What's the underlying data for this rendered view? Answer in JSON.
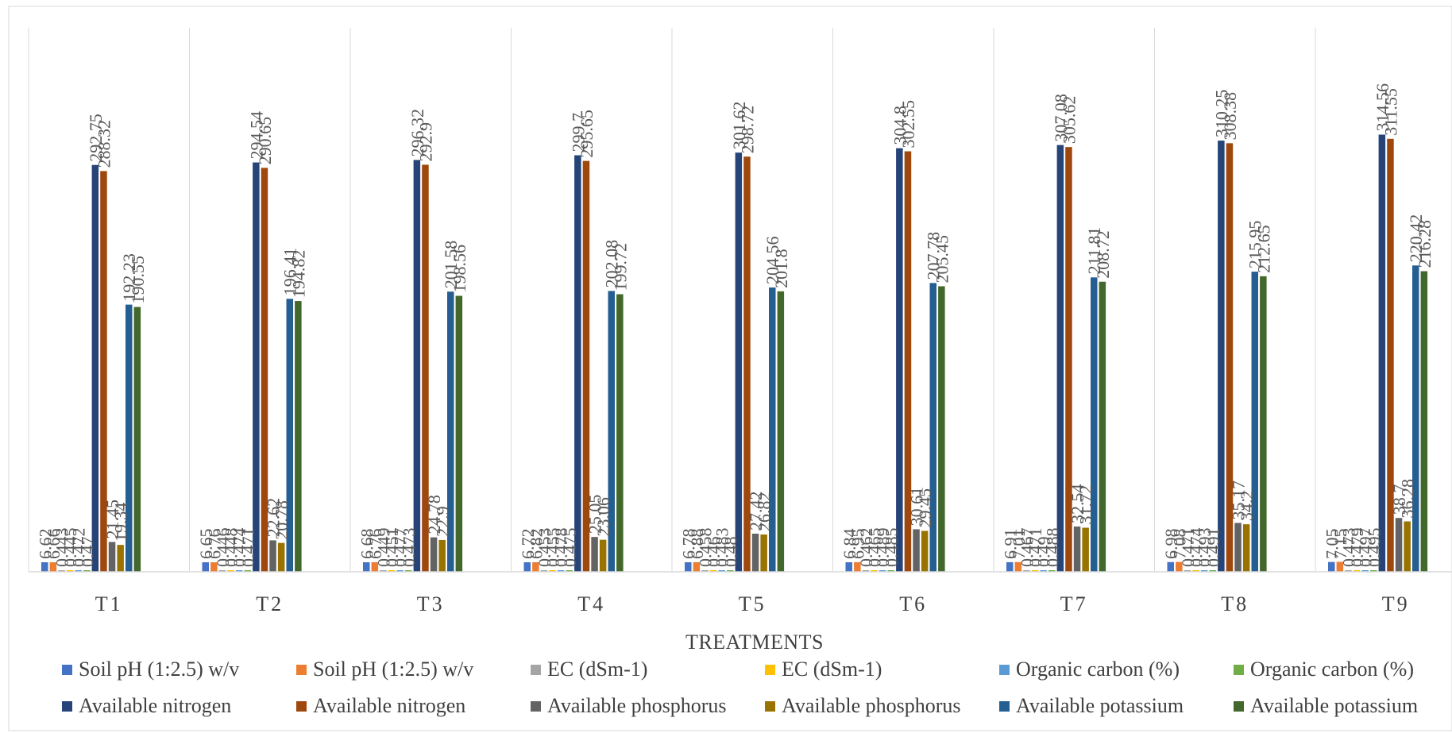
{
  "chart_data": {
    "type": "bar",
    "xlabel": "TREATMENTS",
    "ylabel": "",
    "title": "",
    "ylim": [
      0,
      340
    ],
    "grid": "vertical category separators",
    "legend_position": "bottom",
    "categories": [
      "T1",
      "T2",
      "T3",
      "T4",
      "T5",
      "T6",
      "T7",
      "T8",
      "T9"
    ],
    "series": [
      {
        "name": "Soil pH (1:2.5) w/v",
        "color": "#4472c4",
        "values": [
          6.62,
          6.65,
          6.68,
          6.72,
          6.78,
          6.84,
          6.91,
          6.98,
          7.05
        ]
      },
      {
        "name": "Soil pH (1:2.5) w/v",
        "color": "#ed7d31",
        "values": [
          6.66,
          6.76,
          6.76,
          6.82,
          6.88,
          6.95,
          7.01,
          7.08,
          7.15
        ]
      },
      {
        "name": "EC (dSm-1)",
        "color": "#a5a5a5",
        "values": [
          0.443,
          0.446,
          0.449,
          0.453,
          0.458,
          0.462,
          0.467,
          0.471,
          0.473
        ]
      },
      {
        "name": "EC (dSm-1)",
        "color": "#ffc000",
        "values": [
          0.445,
          0.448,
          0.451,
          0.455,
          0.46,
          0.465,
          0.471,
          0.474,
          0.479
        ]
      },
      {
        "name": "Organic carbon (%)",
        "color": "#5b9bd5",
        "values": [
          0.472,
          0.474,
          0.477,
          0.478,
          0.483,
          0.489,
          0.49,
          0.493,
          0.497
        ]
      },
      {
        "name": "Organic carbon (%)",
        "color": "#70ad47",
        "values": [
          0.47,
          0.471,
          0.473,
          0.475,
          0.48,
          0.485,
          0.488,
          0.491,
          0.495
        ]
      },
      {
        "name": "Available nitrogen",
        "color": "#264478",
        "values": [
          292.75,
          294.54,
          296.32,
          299.7,
          301.62,
          304.8,
          307.08,
          310.25,
          314.56
        ]
      },
      {
        "name": "Available nitrogen",
        "color": "#9e480e",
        "values": [
          288.32,
          290.65,
          292.9,
          295.65,
          298.72,
          302.55,
          305.62,
          308.38,
          311.55
        ]
      },
      {
        "name": "Available phosphorus",
        "color": "#636363",
        "values": [
          21.45,
          22.62,
          24.78,
          25.05,
          27.42,
          30.61,
          32.54,
          35.17,
          38.7
        ]
      },
      {
        "name": "Available phosphorus",
        "color": "#997300",
        "values": [
          19.34,
          20.78,
          22.9,
          23.06,
          26.82,
          29.45,
          31.72,
          34.2,
          36.28
        ]
      },
      {
        "name": "Available potassium",
        "color": "#255e91",
        "values": [
          192.23,
          196.41,
          201.58,
          202.08,
          204.56,
          207.78,
          211.81,
          215.95,
          220.42
        ]
      },
      {
        "name": "Available potassium",
        "color": "#43682b",
        "values": [
          190.55,
          194.82,
          198.56,
          199.72,
          201.8,
          205.45,
          208.72,
          212.65,
          216.28
        ]
      }
    ]
  }
}
